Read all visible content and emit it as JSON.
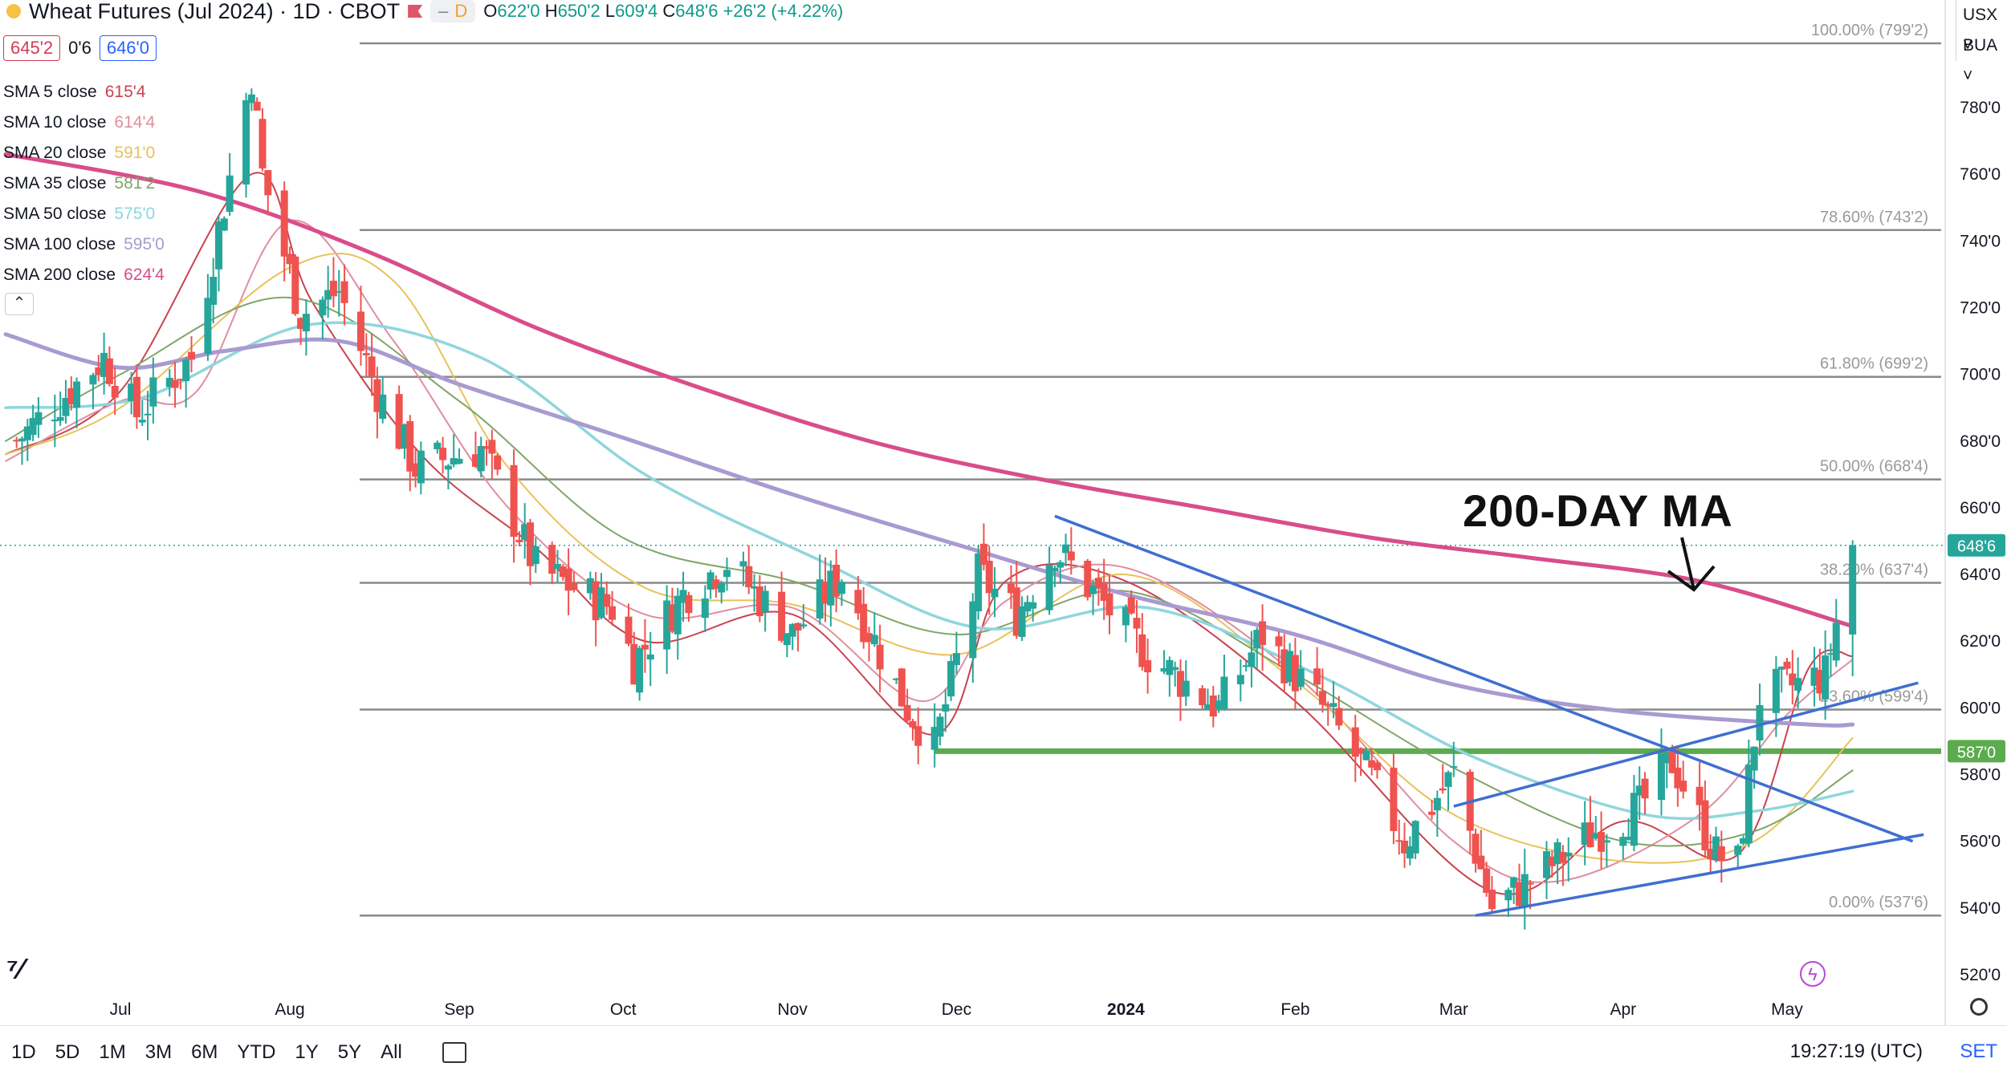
{
  "header": {
    "title": "Wheat Futures (Jul 2024) · 1D · CBOT",
    "mode_badge": "D",
    "ohlc": {
      "o_label": "O",
      "o": "622'0",
      "h_label": "H",
      "h": "650'2",
      "l_label": "L",
      "l": "609'4",
      "c_label": "C",
      "c": "648'6",
      "change": "+26'2 (+4.22%)"
    }
  },
  "quote": {
    "bid": "645'2",
    "spread": "0'6",
    "ask": "646'0"
  },
  "indicators": [
    {
      "name": "SMA 5 close",
      "value": "615'4",
      "color": "#c8434f"
    },
    {
      "name": "SMA 10 close",
      "value": "614'4",
      "color": "#e08ea0"
    },
    {
      "name": "SMA 20 close",
      "value": "591'0",
      "color": "#e8c25a"
    },
    {
      "name": "SMA 35 close",
      "value": "581'2",
      "color": "#7fa56a"
    },
    {
      "name": "SMA 50 close",
      "value": "575'0",
      "color": "#8fd6dd"
    },
    {
      "name": "SMA 100 close",
      "value": "595'0",
      "color": "#a99ad1"
    },
    {
      "name": "SMA 200 close",
      "value": "624'4",
      "color": "#d94d8c"
    }
  ],
  "currency": {
    "unit": "USX",
    "exchange": "BUA"
  },
  "callout": "200-DAY MA",
  "chart_data": {
    "type": "candlestick",
    "y_range": [
      515,
      805
    ],
    "y_ticks": [
      {
        "v": 780,
        "label": "780'0"
      },
      {
        "v": 760,
        "label": "760'0"
      },
      {
        "v": 740,
        "label": "740'0"
      },
      {
        "v": 720,
        "label": "720'0"
      },
      {
        "v": 700,
        "label": "700'0"
      },
      {
        "v": 680,
        "label": "680'0"
      },
      {
        "v": 660,
        "label": "660'0"
      },
      {
        "v": 640,
        "label": "640'0"
      },
      {
        "v": 620,
        "label": "620'0"
      },
      {
        "v": 600,
        "label": "600'0"
      },
      {
        "v": 580,
        "label": "580'0"
      },
      {
        "v": 560,
        "label": "560'0"
      },
      {
        "v": 540,
        "label": "540'0"
      },
      {
        "v": 520,
        "label": "520'0"
      }
    ],
    "x_ticks": [
      {
        "d": "2023-07-01",
        "label": "Jul"
      },
      {
        "d": "2023-08-01",
        "label": "Aug"
      },
      {
        "d": "2023-09-01",
        "label": "Sep"
      },
      {
        "d": "2023-10-01",
        "label": "Oct"
      },
      {
        "d": "2023-11-01",
        "label": "Nov"
      },
      {
        "d": "2023-12-01",
        "label": "Dec"
      },
      {
        "d": "2024-01-01",
        "label": "2024"
      },
      {
        "d": "2024-02-01",
        "label": "Feb"
      },
      {
        "d": "2024-03-01",
        "label": "Mar"
      },
      {
        "d": "2024-04-01",
        "label": "Apr"
      },
      {
        "d": "2024-05-01",
        "label": "May"
      }
    ],
    "fib_levels": [
      {
        "v": 799.25,
        "label": "100.00% (799'2)"
      },
      {
        "v": 743.25,
        "label": "78.60% (743'2)"
      },
      {
        "v": 699.25,
        "label": "61.80% (699'2)"
      },
      {
        "v": 668.5,
        "label": "50.00% (668'4)"
      },
      {
        "v": 637.5,
        "label": "38.20% (637'4)"
      },
      {
        "v": 599.5,
        "label": "23.60% (599'4)"
      },
      {
        "v": 537.75,
        "label": "0.00% (537'6)"
      }
    ],
    "support": {
      "v": 587,
      "label": "587'0",
      "color": "#5cab4e",
      "from": "2023-11-27"
    },
    "last_price": {
      "v": 648.75,
      "label": "648'6",
      "color": "#26a69a"
    },
    "trendlines": [
      {
        "x1": "2023-12-19",
        "y1": 657.5,
        "x2": "2024-05-24",
        "y2": 560
      },
      {
        "x1": "2024-03-05",
        "y1": 537.75,
        "x2": "2024-05-26",
        "y2": 562
      },
      {
        "x1": "2024-03-01",
        "y1": 570.5,
        "x2": "2024-05-25",
        "y2": 607.5
      }
    ],
    "key_points": [
      {
        "d": "2023-06-12",
        "c": 680
      },
      {
        "d": "2023-06-28",
        "c": 705
      },
      {
        "d": "2023-07-04",
        "c": 688
      },
      {
        "d": "2023-07-14",
        "c": 705
      },
      {
        "d": "2023-07-25",
        "c": 790
      },
      {
        "d": "2023-07-27",
        "c": 760
      },
      {
        "d": "2023-08-03",
        "c": 718
      },
      {
        "d": "2023-08-10",
        "c": 725
      },
      {
        "d": "2023-08-17",
        "c": 695
      },
      {
        "d": "2023-08-24",
        "c": 672
      },
      {
        "d": "2023-09-05",
        "c": 678
      },
      {
        "d": "2023-09-15",
        "c": 642
      },
      {
        "d": "2023-09-29",
        "c": 630
      },
      {
        "d": "2023-10-03",
        "c": 614
      },
      {
        "d": "2023-10-12",
        "c": 634
      },
      {
        "d": "2023-10-20",
        "c": 644
      },
      {
        "d": "2023-11-01",
        "c": 622
      },
      {
        "d": "2023-11-10",
        "c": 640
      },
      {
        "d": "2023-11-22",
        "c": 600
      },
      {
        "d": "2023-11-27",
        "c": 588
      },
      {
        "d": "2023-12-05",
        "c": 640
      },
      {
        "d": "2023-12-12",
        "c": 628
      },
      {
        "d": "2023-12-19",
        "c": 648
      },
      {
        "d": "2024-01-05",
        "c": 616
      },
      {
        "d": "2024-01-18",
        "c": 600
      },
      {
        "d": "2024-01-26",
        "c": 622
      },
      {
        "d": "2024-02-07",
        "c": 598
      },
      {
        "d": "2024-02-15",
        "c": 578
      },
      {
        "d": "2024-02-21",
        "c": 560
      },
      {
        "d": "2024-03-01",
        "c": 580
      },
      {
        "d": "2024-03-08",
        "c": 540
      },
      {
        "d": "2024-03-15",
        "c": 548
      },
      {
        "d": "2024-03-26",
        "c": 562
      },
      {
        "d": "2024-04-04",
        "c": 570
      },
      {
        "d": "2024-04-10",
        "c": 584
      },
      {
        "d": "2024-04-18",
        "c": 556
      },
      {
        "d": "2024-04-22",
        "c": 553
      },
      {
        "d": "2024-04-26",
        "c": 604
      },
      {
        "d": "2024-05-01",
        "c": 606
      },
      {
        "d": "2024-05-08",
        "c": 610
      },
      {
        "d": "2024-05-13",
        "c": 648.75
      }
    ],
    "sma_paths": {
      "sma200": [
        [
          "2023-06-10",
          766
        ],
        [
          "2023-07-15",
          755
        ],
        [
          "2023-08-15",
          737
        ],
        [
          "2023-09-15",
          714
        ],
        [
          "2023-10-15",
          696
        ],
        [
          "2023-11-15",
          680
        ],
        [
          "2023-12-15",
          669
        ],
        [
          "2024-01-15",
          660
        ],
        [
          "2024-02-15",
          651
        ],
        [
          "2024-03-15",
          645
        ],
        [
          "2024-04-15",
          638
        ],
        [
          "2024-05-13",
          624.5
        ]
      ],
      "sma100": [
        [
          "2023-06-10",
          712
        ],
        [
          "2023-07-01",
          702
        ],
        [
          "2023-07-20",
          707
        ],
        [
          "2023-08-10",
          710
        ],
        [
          "2023-09-01",
          697
        ],
        [
          "2023-10-01",
          681
        ],
        [
          "2023-11-01",
          664
        ],
        [
          "2023-12-01",
          649
        ],
        [
          "2024-01-01",
          634
        ],
        [
          "2024-02-01",
          622
        ],
        [
          "2024-03-01",
          607
        ],
        [
          "2024-04-01",
          599
        ],
        [
          "2024-05-05",
          595
        ],
        [
          "2024-05-13",
          595
        ]
      ],
      "sma50": [
        [
          "2023-06-10",
          690
        ],
        [
          "2023-07-05",
          693
        ],
        [
          "2023-08-05",
          715
        ],
        [
          "2023-09-05",
          705
        ],
        [
          "2023-10-05",
          670
        ],
        [
          "2023-11-05",
          645
        ],
        [
          "2023-12-05",
          624
        ],
        [
          "2024-01-05",
          630
        ],
        [
          "2024-02-05",
          610
        ],
        [
          "2024-03-05",
          585
        ],
        [
          "2024-04-05",
          568
        ],
        [
          "2024-04-25",
          569
        ],
        [
          "2024-05-13",
          575
        ]
      ],
      "sma35": [
        [
          "2023-06-10",
          680
        ],
        [
          "2023-07-01",
          700
        ],
        [
          "2023-08-01",
          723
        ],
        [
          "2023-09-01",
          692
        ],
        [
          "2023-10-01",
          651
        ],
        [
          "2023-11-01",
          638
        ],
        [
          "2023-12-01",
          622
        ],
        [
          "2024-01-01",
          635
        ],
        [
          "2024-02-01",
          610
        ],
        [
          "2024-03-01",
          582
        ],
        [
          "2024-04-01",
          560
        ],
        [
          "2024-04-25",
          563
        ],
        [
          "2024-05-13",
          581.25
        ]
      ],
      "sma20": [
        [
          "2023-06-10",
          676
        ],
        [
          "2023-07-01",
          690
        ],
        [
          "2023-08-01",
          732
        ],
        [
          "2023-08-20",
          728
        ],
        [
          "2023-09-10",
          672
        ],
        [
          "2023-10-05",
          636
        ],
        [
          "2023-11-01",
          631
        ],
        [
          "2023-12-01",
          616
        ],
        [
          "2024-01-01",
          640
        ],
        [
          "2024-02-01",
          608
        ],
        [
          "2024-03-01",
          568
        ],
        [
          "2024-04-01",
          554
        ],
        [
          "2024-04-25",
          560
        ],
        [
          "2024-05-13",
          591
        ]
      ],
      "sma10": [
        [
          "2023-06-10",
          674
        ],
        [
          "2023-07-01",
          692
        ],
        [
          "2023-07-15",
          695
        ],
        [
          "2023-08-01",
          746
        ],
        [
          "2023-08-20",
          710
        ],
        [
          "2023-09-10",
          660
        ],
        [
          "2023-10-05",
          628
        ],
        [
          "2023-11-01",
          630
        ],
        [
          "2023-11-25",
          602
        ],
        [
          "2023-12-10",
          632
        ],
        [
          "2024-01-01",
          642
        ],
        [
          "2024-02-01",
          610
        ],
        [
          "2024-03-01",
          560
        ],
        [
          "2024-03-20",
          548
        ],
        [
          "2024-04-15",
          568
        ],
        [
          "2024-05-01",
          598
        ],
        [
          "2024-05-13",
          614.5
        ]
      ],
      "sma5": [
        [
          "2023-06-10",
          676
        ],
        [
          "2023-07-01",
          695
        ],
        [
          "2023-07-25",
          760
        ],
        [
          "2023-08-05",
          722
        ],
        [
          "2023-08-25",
          676
        ],
        [
          "2023-09-15",
          648
        ],
        [
          "2023-10-05",
          620
        ],
        [
          "2023-11-01",
          628
        ],
        [
          "2023-11-27",
          592
        ],
        [
          "2023-12-10",
          638
        ],
        [
          "2024-01-01",
          638
        ],
        [
          "2024-02-01",
          602
        ],
        [
          "2024-03-08",
          545
        ],
        [
          "2024-04-01",
          566
        ],
        [
          "2024-04-22",
          556
        ],
        [
          "2024-05-05",
          612
        ],
        [
          "2024-05-13",
          615.5
        ]
      ]
    }
  },
  "bottom": {
    "ranges": [
      "1D",
      "5D",
      "1M",
      "3M",
      "6M",
      "YTD",
      "1Y",
      "5Y",
      "All"
    ],
    "clock": "19:27:19 (UTC)",
    "set": "SET"
  }
}
